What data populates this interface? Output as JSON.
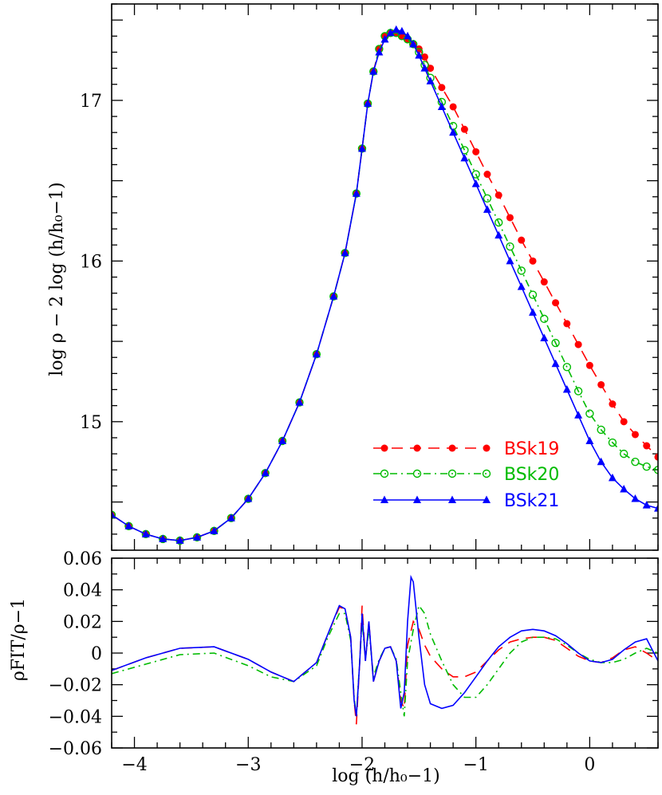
{
  "chart_data": [
    {
      "type": "line",
      "ylabel": "log ρ − 2 log (h/h₀−1)",
      "xlim": [
        -4.2,
        0.6
      ],
      "ylim": [
        14.2,
        17.6
      ],
      "x_ticks": [
        -4,
        -3,
        -2,
        -1,
        0
      ],
      "y_ticks": [
        15,
        16,
        17
      ],
      "y_tick_labels": [
        "15",
        "16",
        "17"
      ],
      "legend_position": "bottom-right",
      "series": [
        {
          "name": "BSk19",
          "color": "#ff0000",
          "style": "dashed",
          "marker": "filled-circle",
          "x": [
            -4.2,
            -4.05,
            -3.9,
            -3.75,
            -3.6,
            -3.45,
            -3.3,
            -3.15,
            -3.0,
            -2.85,
            -2.7,
            -2.55,
            -2.4,
            -2.25,
            -2.15,
            -2.05,
            -2.0,
            -1.95,
            -1.9,
            -1.85,
            -1.8,
            -1.75,
            -1.7,
            -1.65,
            -1.6,
            -1.55,
            -1.5,
            -1.45,
            -1.4,
            -1.3,
            -1.2,
            -1.1,
            -1.0,
            -0.9,
            -0.8,
            -0.7,
            -0.6,
            -0.5,
            -0.4,
            -0.3,
            -0.2,
            -0.1,
            0.0,
            0.1,
            0.2,
            0.3,
            0.4,
            0.5,
            0.6
          ],
          "y": [
            14.42,
            14.35,
            14.3,
            14.27,
            14.26,
            14.28,
            14.32,
            14.4,
            14.52,
            14.68,
            14.88,
            15.12,
            15.42,
            15.78,
            16.05,
            16.42,
            16.7,
            16.98,
            17.18,
            17.32,
            17.4,
            17.42,
            17.42,
            17.4,
            17.38,
            17.35,
            17.32,
            17.27,
            17.2,
            17.08,
            16.96,
            16.82,
            16.68,
            16.54,
            16.41,
            16.27,
            16.13,
            16.0,
            15.87,
            15.74,
            15.61,
            15.48,
            15.35,
            15.23,
            15.11,
            15.0,
            14.92,
            14.85,
            14.78
          ]
        },
        {
          "name": "BSk20",
          "color": "#00bb00",
          "style": "dash-dot",
          "marker": "open-circle",
          "x": [
            -4.2,
            -4.05,
            -3.9,
            -3.75,
            -3.6,
            -3.45,
            -3.3,
            -3.15,
            -3.0,
            -2.85,
            -2.7,
            -2.55,
            -2.4,
            -2.25,
            -2.15,
            -2.05,
            -2.0,
            -1.95,
            -1.9,
            -1.85,
            -1.8,
            -1.75,
            -1.7,
            -1.65,
            -1.6,
            -1.55,
            -1.5,
            -1.45,
            -1.4,
            -1.3,
            -1.2,
            -1.1,
            -1.0,
            -0.9,
            -0.8,
            -0.7,
            -0.6,
            -0.5,
            -0.4,
            -0.3,
            -0.2,
            -0.1,
            0.0,
            0.1,
            0.2,
            0.3,
            0.4,
            0.5,
            0.6
          ],
          "y": [
            14.42,
            14.35,
            14.3,
            14.27,
            14.26,
            14.28,
            14.32,
            14.4,
            14.52,
            14.68,
            14.88,
            15.12,
            15.42,
            15.78,
            16.05,
            16.42,
            16.7,
            16.98,
            17.18,
            17.32,
            17.4,
            17.42,
            17.42,
            17.4,
            17.38,
            17.35,
            17.3,
            17.22,
            17.14,
            16.99,
            16.84,
            16.69,
            16.54,
            16.39,
            16.24,
            16.09,
            15.94,
            15.79,
            15.64,
            15.49,
            15.34,
            15.19,
            15.05,
            14.95,
            14.87,
            14.8,
            14.75,
            14.72,
            14.7
          ]
        },
        {
          "name": "BSk21",
          "color": "#0000ff",
          "style": "solid",
          "marker": "filled-triangle",
          "x": [
            -4.2,
            -4.05,
            -3.9,
            -3.75,
            -3.6,
            -3.45,
            -3.3,
            -3.15,
            -3.0,
            -2.85,
            -2.7,
            -2.55,
            -2.4,
            -2.25,
            -2.15,
            -2.05,
            -2.0,
            -1.95,
            -1.9,
            -1.85,
            -1.8,
            -1.75,
            -1.7,
            -1.65,
            -1.6,
            -1.55,
            -1.5,
            -1.45,
            -1.4,
            -1.3,
            -1.2,
            -1.1,
            -1.0,
            -0.9,
            -0.8,
            -0.7,
            -0.6,
            -0.5,
            -0.4,
            -0.3,
            -0.2,
            -0.1,
            0.0,
            0.1,
            0.2,
            0.3,
            0.4,
            0.5,
            0.6
          ],
          "y": [
            14.42,
            14.35,
            14.3,
            14.27,
            14.26,
            14.28,
            14.32,
            14.4,
            14.52,
            14.68,
            14.88,
            15.12,
            15.42,
            15.78,
            16.05,
            16.42,
            16.7,
            16.98,
            17.18,
            17.3,
            17.38,
            17.42,
            17.44,
            17.43,
            17.4,
            17.35,
            17.28,
            17.2,
            17.12,
            16.96,
            16.8,
            16.64,
            16.48,
            16.32,
            16.16,
            16.0,
            15.84,
            15.68,
            15.52,
            15.36,
            15.2,
            15.04,
            14.88,
            14.75,
            14.65,
            14.58,
            14.52,
            14.48,
            14.46
          ]
        }
      ]
    },
    {
      "type": "line",
      "xlabel": "log (h/h₀−1)",
      "ylabel": "ρFIT/ρ−1",
      "xlim": [
        -4.2,
        0.6
      ],
      "ylim": [
        -0.06,
        0.06
      ],
      "x_ticks": [
        -4,
        -3,
        -2,
        -1,
        0
      ],
      "x_tick_labels": [
        "−4",
        "−3",
        "−2",
        "−1",
        "0"
      ],
      "y_ticks": [
        -0.06,
        -0.04,
        -0.02,
        0,
        0.02,
        0.04,
        0.06
      ],
      "y_tick_labels": [
        "−0.06",
        "−0.04",
        "−0.02",
        "0",
        "0.02",
        "0.04",
        "0.06"
      ],
      "series": [
        {
          "name": "BSk19",
          "color": "#ff0000",
          "style": "dashed",
          "x": [
            -4.2,
            -3.9,
            -3.6,
            -3.3,
            -3.0,
            -2.8,
            -2.6,
            -2.4,
            -2.3,
            -2.2,
            -2.15,
            -2.1,
            -2.07,
            -2.05,
            -2.02,
            -2.0,
            -1.97,
            -1.94,
            -1.9,
            -1.85,
            -1.8,
            -1.75,
            -1.7,
            -1.66,
            -1.63,
            -1.6,
            -1.55,
            -1.5,
            -1.45,
            -1.4,
            -1.3,
            -1.2,
            -1.1,
            -1.0,
            -0.9,
            -0.8,
            -0.7,
            -0.6,
            -0.5,
            -0.4,
            -0.3,
            -0.2,
            -0.1,
            0.0,
            0.1,
            0.2,
            0.3,
            0.4,
            0.5,
            0.6
          ],
          "y": [
            -0.011,
            -0.003,
            0.003,
            0.004,
            -0.004,
            -0.012,
            -0.018,
            -0.006,
            0.012,
            0.029,
            0.028,
            0.01,
            -0.03,
            -0.045,
            -0.005,
            0.03,
            -0.005,
            0.02,
            -0.018,
            -0.005,
            0.003,
            0.004,
            -0.005,
            -0.03,
            -0.035,
            0.005,
            0.02,
            0.015,
            0.005,
            -0.002,
            -0.01,
            -0.015,
            -0.015,
            -0.012,
            -0.005,
            0.002,
            0.007,
            0.009,
            0.01,
            0.01,
            0.008,
            0.003,
            -0.002,
            -0.005,
            -0.006,
            -0.003,
            0.002,
            0.004,
            0.0,
            -0.005
          ]
        },
        {
          "name": "BSk20",
          "color": "#00bb00",
          "style": "dash-dot",
          "x": [
            -4.2,
            -3.9,
            -3.6,
            -3.3,
            -3.0,
            -2.8,
            -2.6,
            -2.4,
            -2.3,
            -2.2,
            -2.15,
            -2.1,
            -2.07,
            -2.05,
            -2.02,
            -2.0,
            -1.97,
            -1.94,
            -1.9,
            -1.85,
            -1.8,
            -1.75,
            -1.7,
            -1.66,
            -1.63,
            -1.6,
            -1.55,
            -1.5,
            -1.45,
            -1.4,
            -1.3,
            -1.2,
            -1.1,
            -1.0,
            -0.9,
            -0.8,
            -0.7,
            -0.6,
            -0.5,
            -0.4,
            -0.3,
            -0.2,
            -0.1,
            0.0,
            0.1,
            0.2,
            0.3,
            0.4,
            0.5,
            0.6
          ],
          "y": [
            -0.013,
            -0.007,
            -0.001,
            0.0,
            -0.008,
            -0.015,
            -0.018,
            -0.008,
            0.01,
            0.025,
            0.025,
            0.008,
            -0.028,
            -0.04,
            -0.004,
            0.02,
            -0.004,
            0.016,
            -0.015,
            -0.004,
            0.003,
            0.004,
            -0.004,
            -0.025,
            -0.04,
            -0.005,
            0.015,
            0.03,
            0.025,
            0.012,
            -0.005,
            -0.02,
            -0.028,
            -0.028,
            -0.02,
            -0.01,
            0.0,
            0.007,
            0.01,
            0.01,
            0.009,
            0.005,
            0.0,
            -0.004,
            -0.006,
            -0.006,
            -0.004,
            0.0,
            0.003,
            0.0
          ]
        },
        {
          "name": "BSk21",
          "color": "#0000ff",
          "style": "solid",
          "x": [
            -4.2,
            -3.9,
            -3.6,
            -3.3,
            -3.0,
            -2.8,
            -2.6,
            -2.4,
            -2.3,
            -2.2,
            -2.15,
            -2.1,
            -2.07,
            -2.05,
            -2.02,
            -2.0,
            -1.97,
            -1.94,
            -1.9,
            -1.85,
            -1.8,
            -1.75,
            -1.7,
            -1.66,
            -1.63,
            -1.6,
            -1.57,
            -1.55,
            -1.5,
            -1.45,
            -1.4,
            -1.3,
            -1.2,
            -1.1,
            -1.0,
            -0.9,
            -0.8,
            -0.7,
            -0.6,
            -0.5,
            -0.4,
            -0.3,
            -0.2,
            -0.1,
            0.0,
            0.1,
            0.2,
            0.3,
            0.4,
            0.5,
            0.6
          ],
          "y": [
            -0.011,
            -0.003,
            0.003,
            0.004,
            -0.004,
            -0.012,
            -0.018,
            -0.006,
            0.012,
            0.03,
            0.028,
            0.01,
            -0.03,
            -0.04,
            -0.005,
            0.025,
            -0.005,
            0.02,
            -0.018,
            -0.005,
            0.003,
            0.004,
            -0.005,
            -0.035,
            -0.025,
            0.02,
            0.048,
            0.045,
            0.01,
            -0.02,
            -0.032,
            -0.035,
            -0.033,
            -0.025,
            -0.015,
            -0.005,
            0.004,
            0.01,
            0.014,
            0.015,
            0.014,
            0.011,
            0.006,
            0.0,
            -0.005,
            -0.006,
            -0.004,
            0.002,
            0.007,
            0.009,
            -0.005
          ]
        }
      ]
    }
  ]
}
